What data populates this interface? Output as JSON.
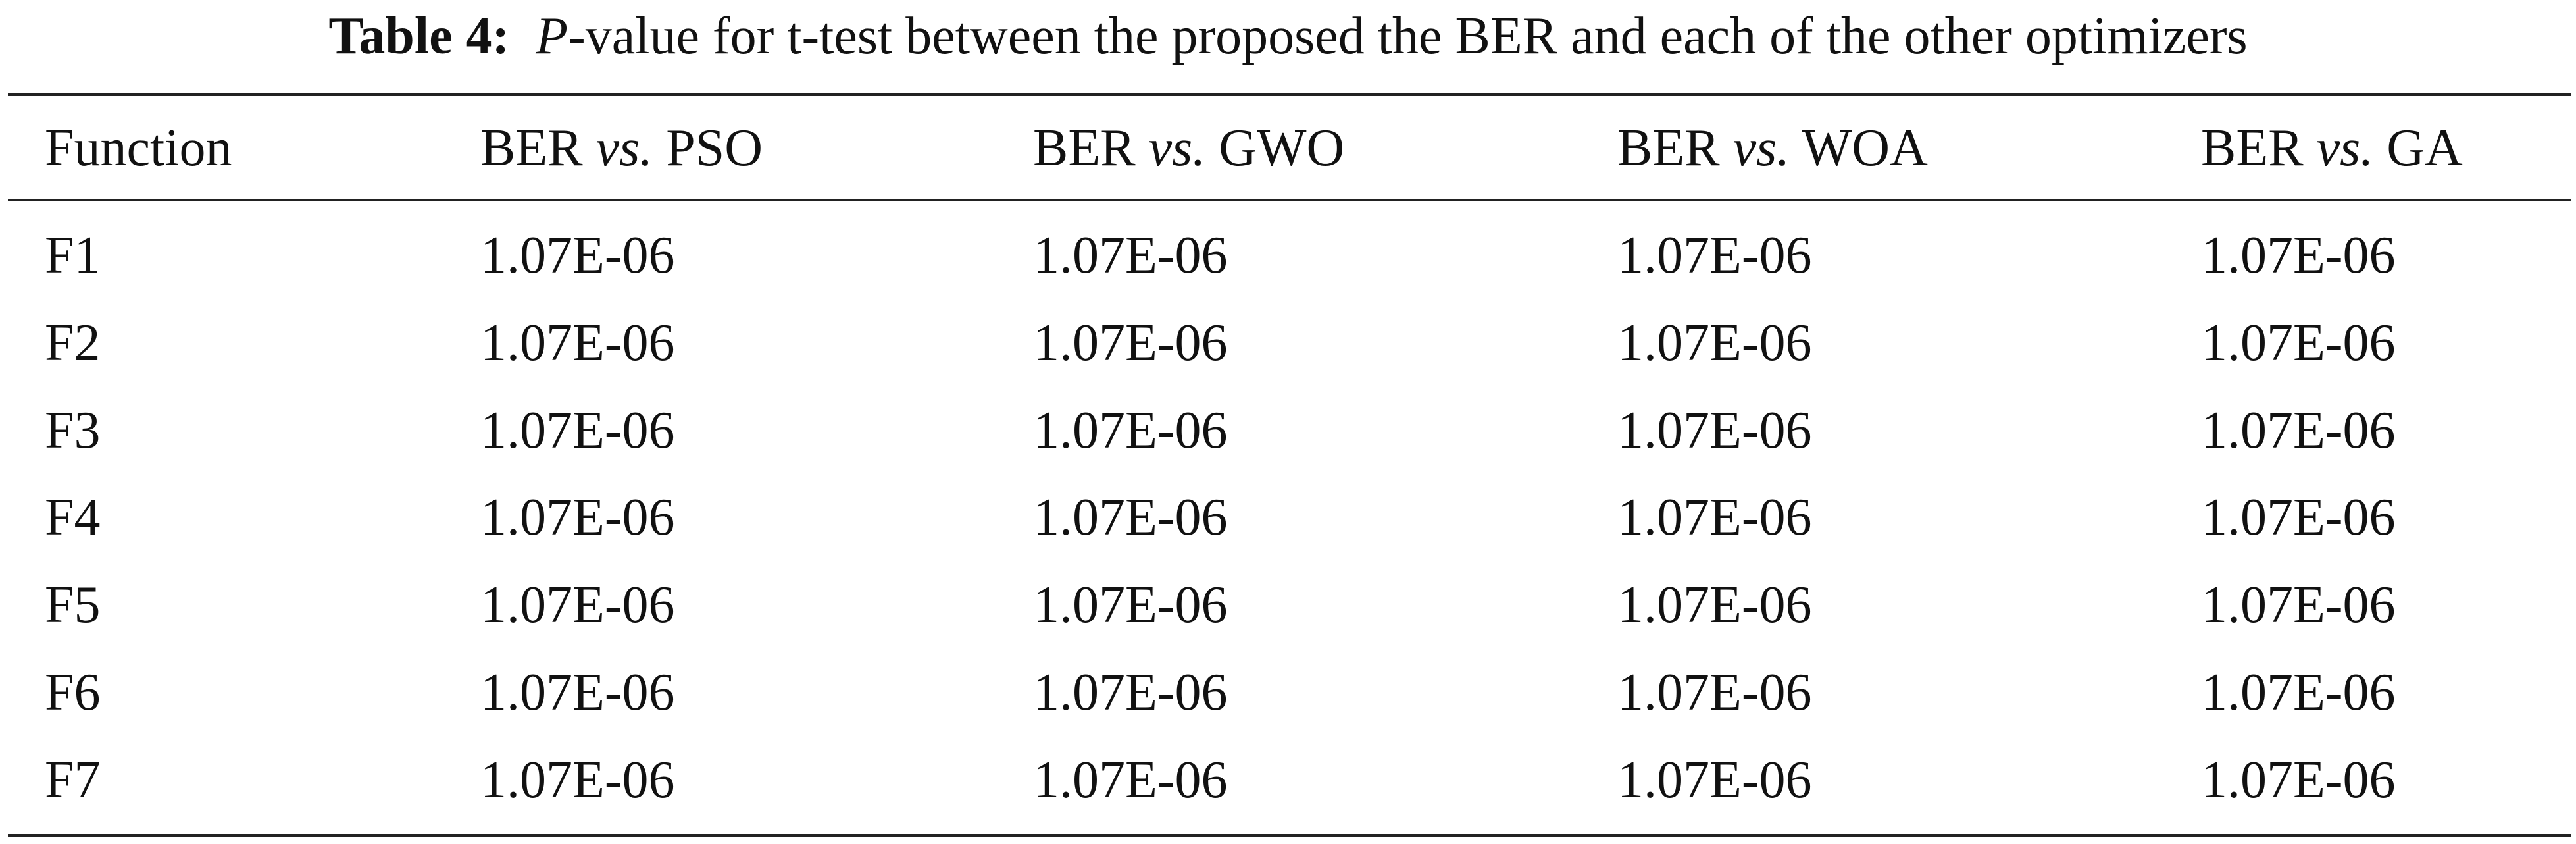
{
  "caption": {
    "label": "Table 4:",
    "italic": "P",
    "text": "-value for t-test between the proposed the BER and each of the other optimizers"
  },
  "table": {
    "header": [
      "Function",
      {
        "left": "BER",
        "mid": "vs.",
        "right": "PSO"
      },
      {
        "left": "BER",
        "mid": "vs.",
        "right": "GWO"
      },
      {
        "left": "BER",
        "mid": "vs.",
        "right": "WOA"
      },
      {
        "left": "BER",
        "mid": "vs.",
        "right": "GA"
      }
    ],
    "rows": [
      [
        "F1",
        "1.07E-06",
        "1.07E-06",
        "1.07E-06",
        "1.07E-06"
      ],
      [
        "F2",
        "1.07E-06",
        "1.07E-06",
        "1.07E-06",
        "1.07E-06"
      ],
      [
        "F3",
        "1.07E-06",
        "1.07E-06",
        "1.07E-06",
        "1.07E-06"
      ],
      [
        "F4",
        "1.07E-06",
        "1.07E-06",
        "1.07E-06",
        "1.07E-06"
      ],
      [
        "F5",
        "1.07E-06",
        "1.07E-06",
        "1.07E-06",
        "1.07E-06"
      ],
      [
        "F6",
        "1.07E-06",
        "1.07E-06",
        "1.07E-06",
        "1.07E-06"
      ],
      [
        "F7",
        "1.07E-06",
        "1.07E-06",
        "1.07E-06",
        "1.07E-06"
      ]
    ]
  }
}
